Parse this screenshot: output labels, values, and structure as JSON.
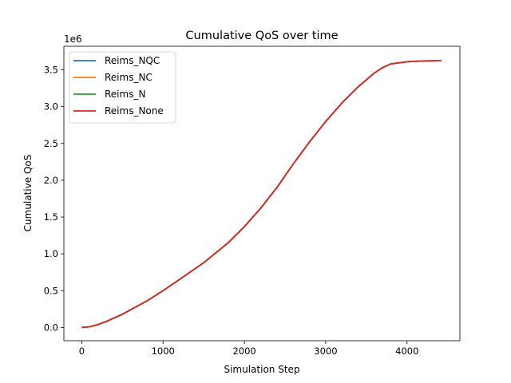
{
  "chart_data": {
    "type": "line",
    "title": "Cumulative QoS over time",
    "xlabel": "Simulation Step",
    "ylabel": "Cumulative QoS",
    "y_offset_label": "1e6",
    "xlim": [
      -220,
      4650
    ],
    "ylim": [
      -0.18,
      3.82
    ],
    "x_ticks": [
      0,
      1000,
      2000,
      3000,
      4000
    ],
    "x_tick_labels": [
      "0",
      "1000",
      "2000",
      "3000",
      "4000"
    ],
    "y_ticks": [
      0.0,
      0.5,
      1.0,
      1.5,
      2.0,
      2.5,
      3.0,
      3.5
    ],
    "y_tick_labels": [
      "0.0",
      "0.5",
      "1.0",
      "1.5",
      "2.0",
      "2.5",
      "3.0",
      "3.5"
    ],
    "grid": false,
    "legend_position": "top-left",
    "x": [
      0,
      100,
      200,
      300,
      500,
      800,
      1000,
      1200,
      1500,
      1800,
      2000,
      2200,
      2400,
      2600,
      2800,
      3000,
      3200,
      3400,
      3600,
      3700,
      3800,
      4000,
      4200,
      4420
    ],
    "series": [
      {
        "name": "Reims_NQC",
        "color": "#1f77b4",
        "values": [
          0,
          0.01,
          0.04,
          0.08,
          0.18,
          0.36,
          0.5,
          0.65,
          0.88,
          1.15,
          1.37,
          1.62,
          1.9,
          2.22,
          2.52,
          2.8,
          3.05,
          3.27,
          3.46,
          3.53,
          3.58,
          3.61,
          3.62,
          3.625
        ]
      },
      {
        "name": "Reims_NC",
        "color": "#ff7f0e",
        "values": [
          0,
          0.01,
          0.04,
          0.08,
          0.18,
          0.36,
          0.5,
          0.65,
          0.88,
          1.15,
          1.37,
          1.62,
          1.9,
          2.22,
          2.52,
          2.8,
          3.05,
          3.27,
          3.46,
          3.53,
          3.58,
          3.61,
          3.62,
          3.625
        ]
      },
      {
        "name": "Reims_N",
        "color": "#2ca02c",
        "values": [
          0,
          0.01,
          0.04,
          0.08,
          0.18,
          0.36,
          0.5,
          0.65,
          0.88,
          1.15,
          1.37,
          1.62,
          1.9,
          2.22,
          2.52,
          2.8,
          3.05,
          3.27,
          3.46,
          3.53,
          3.58,
          3.61,
          3.62,
          3.625
        ]
      },
      {
        "name": "Reims_None",
        "color": "#d62728",
        "values": [
          0,
          0.01,
          0.04,
          0.08,
          0.18,
          0.36,
          0.5,
          0.65,
          0.88,
          1.15,
          1.37,
          1.62,
          1.9,
          2.22,
          2.52,
          2.8,
          3.05,
          3.27,
          3.46,
          3.53,
          3.58,
          3.61,
          3.62,
          3.625
        ]
      }
    ]
  }
}
